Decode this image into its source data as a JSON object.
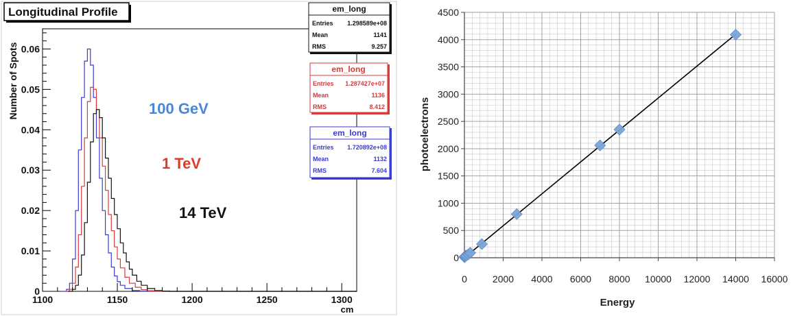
{
  "chart_data": [
    {
      "type": "line",
      "title": "Longitudinal Profile",
      "xlabel": "cm",
      "ylabel": "Number of Spots",
      "xlim": [
        1100,
        1310
      ],
      "ylim": [
        0,
        0.065
      ],
      "x_ticks": [
        "1100",
        "1150",
        "1200",
        "1250",
        "1300"
      ],
      "y_ticks": [
        "0",
        "0.01",
        "0.02",
        "0.03",
        "0.04",
        "0.05",
        "0.06"
      ],
      "grid": false,
      "series": [
        {
          "name": "100 GeV",
          "color": "#3a3ad6",
          "x": [
            1112,
            1116,
            1118,
            1120,
            1122,
            1124,
            1126,
            1128,
            1130,
            1132,
            1134,
            1136,
            1138,
            1140,
            1142,
            1144,
            1146,
            1148,
            1150,
            1152,
            1155,
            1160,
            1165,
            1170,
            1175
          ],
          "y": [
            0,
            0.0005,
            0.002,
            0.008,
            0.02,
            0.035,
            0.048,
            0.057,
            0.06,
            0.056,
            0.048,
            0.038,
            0.028,
            0.02,
            0.014,
            0.0095,
            0.006,
            0.0038,
            0.0024,
            0.0015,
            0.0007,
            0.0002,
            5e-05,
            0,
            0
          ]
        },
        {
          "name": "1 TeV",
          "color": "#d93a3a",
          "x": [
            1115,
            1118,
            1120,
            1122,
            1124,
            1126,
            1128,
            1130,
            1132,
            1134,
            1136,
            1138,
            1140,
            1142,
            1144,
            1146,
            1148,
            1150,
            1152,
            1155,
            1158,
            1162,
            1166,
            1170,
            1175,
            1180,
            1185
          ],
          "y": [
            0,
            0.0005,
            0.002,
            0.006,
            0.014,
            0.026,
            0.038,
            0.047,
            0.0505,
            0.05,
            0.045,
            0.038,
            0.031,
            0.025,
            0.019,
            0.015,
            0.011,
            0.008,
            0.0058,
            0.0035,
            0.002,
            0.001,
            0.0004,
            0.00015,
            5e-05,
            0,
            0
          ]
        },
        {
          "name": "14 TeV",
          "color": "#111111",
          "x": [
            1117,
            1120,
            1122,
            1124,
            1126,
            1128,
            1130,
            1132,
            1134,
            1136,
            1138,
            1140,
            1142,
            1144,
            1146,
            1148,
            1150,
            1152,
            1154,
            1156,
            1158,
            1160,
            1163,
            1166,
            1170,
            1175,
            1180,
            1185,
            1190
          ],
          "y": [
            0,
            0.0005,
            0.0015,
            0.004,
            0.009,
            0.017,
            0.027,
            0.037,
            0.044,
            0.045,
            0.043,
            0.038,
            0.033,
            0.028,
            0.023,
            0.019,
            0.0155,
            0.012,
            0.0095,
            0.0073,
            0.0055,
            0.004,
            0.0025,
            0.0015,
            0.0007,
            0.0002,
            7e-05,
            0,
            0
          ]
        }
      ],
      "annotations": [
        {
          "text": "100 GeV",
          "color": "#4a86d8"
        },
        {
          "text": "1 TeV",
          "color": "#e03a2a"
        },
        {
          "text": "14 TeV",
          "color": "#111111"
        }
      ],
      "stats_boxes": [
        {
          "title": "em_long",
          "color": "#111111",
          "rows": [
            [
              "Entries",
              "1.298589e+08"
            ],
            [
              "Mean",
              "1141"
            ],
            [
              "RMS",
              "9.257"
            ]
          ]
        },
        {
          "title": "em_long",
          "color": "#d93a3a",
          "rows": [
            [
              "Entries",
              "1.287427e+07"
            ],
            [
              "Mean",
              "1136"
            ],
            [
              "RMS",
              "8.412"
            ]
          ]
        },
        {
          "title": "em_long",
          "color": "#3a3ad6",
          "rows": [
            [
              "Entries",
              "1.720892e+08"
            ],
            [
              "Mean",
              "1132"
            ],
            [
              "RMS",
              "7.604"
            ]
          ]
        }
      ]
    },
    {
      "type": "scatter",
      "title": "",
      "xlabel": "Energy",
      "ylabel": "photoelectrons",
      "xlim": [
        0,
        16000
      ],
      "ylim": [
        0,
        4500
      ],
      "x_ticks": [
        "0",
        "2000",
        "4000",
        "6000",
        "8000",
        "10000",
        "12000",
        "14000",
        "16000"
      ],
      "y_ticks": [
        "0",
        "500",
        "1000",
        "1500",
        "2000",
        "2500",
        "3000",
        "3500",
        "4000",
        "4500"
      ],
      "grid": true,
      "marker_color": "#7aa6d8",
      "points": {
        "x": [
          5,
          20,
          50,
          100,
          200,
          300,
          900,
          2700,
          7000,
          8000,
          14000
        ],
        "y": [
          10,
          20,
          30,
          40,
          60,
          90,
          250,
          800,
          2060,
          2350,
          4090
        ]
      },
      "fit_line": {
        "x": [
          0,
          14000
        ],
        "y": [
          0,
          4100
        ],
        "color": "#000000"
      }
    }
  ]
}
